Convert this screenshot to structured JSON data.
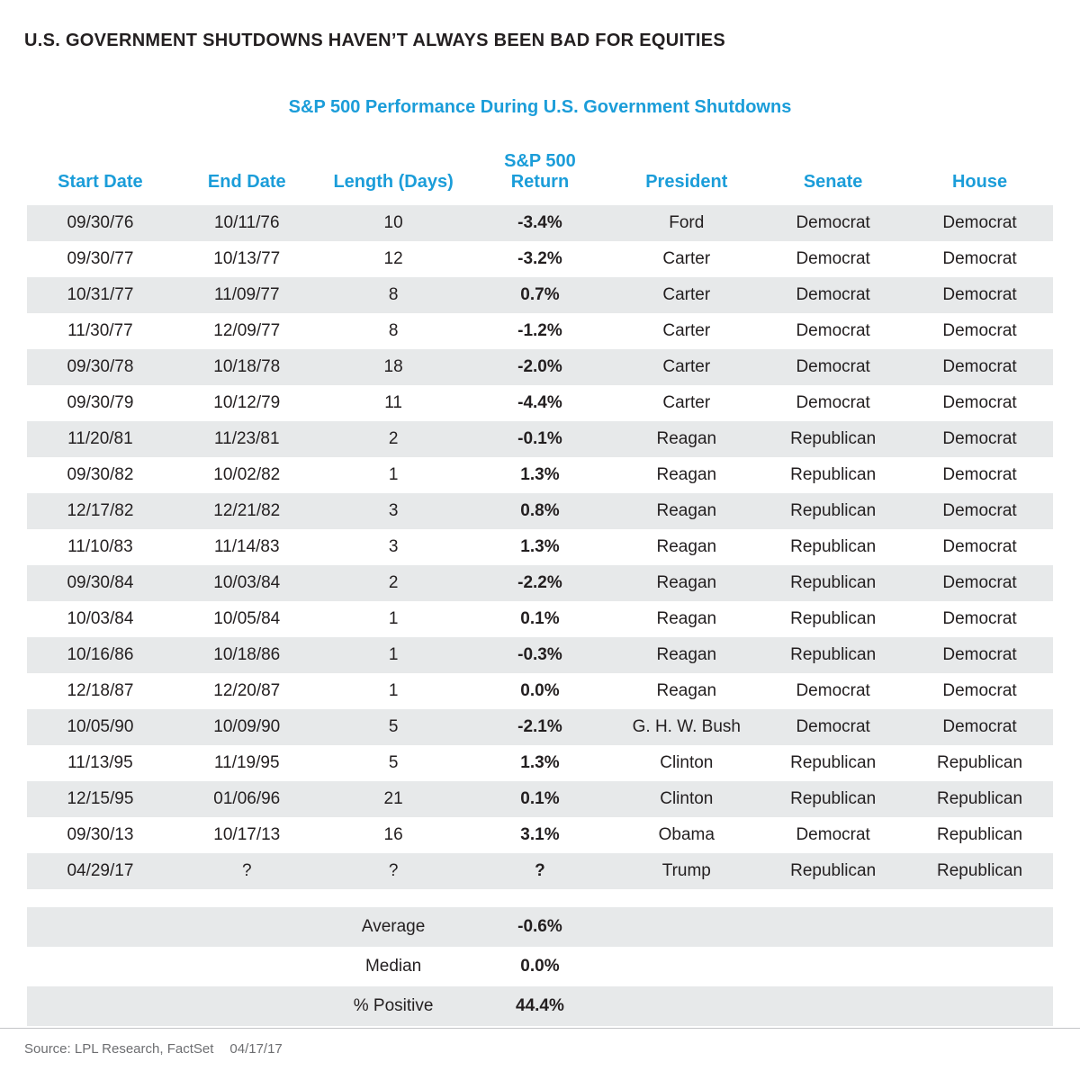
{
  "page_title": "U.S. GOVERNMENT SHUTDOWNS HAVEN’T ALWAYS BEEN BAD FOR EQUITIES",
  "source_label": "Source: LPL Research, FactSet",
  "source_date": "04/17/17",
  "colors": {
    "header_blue": "#1B9DD9",
    "negative_red": "#CE3353",
    "positive_green": "#7AB648",
    "neutral_black": "#231F20",
    "democrat_blue": "#235E8F",
    "republican_red": "#AC3B4E",
    "row_gray": "#E7E9EA"
  },
  "chart_data": {
    "type": "table",
    "title": "S&P 500 Performance During U.S. Government Shutdowns",
    "columns": [
      "Start Date",
      "End Date",
      "Length (Days)",
      "S&P 500\nReturn",
      "President",
      "Senate",
      "House"
    ],
    "rows": [
      {
        "start": "09/30/76",
        "end": "10/11/76",
        "length": "10",
        "return": "-3.4%",
        "return_tone": "negative",
        "president": "Ford",
        "president_party": "rep",
        "senate": "Democrat",
        "senate_party": "dem",
        "house": "Democrat",
        "house_party": "dem"
      },
      {
        "start": "09/30/77",
        "end": "10/13/77",
        "length": "12",
        "return": "-3.2%",
        "return_tone": "negative",
        "president": "Carter",
        "president_party": "dem",
        "senate": "Democrat",
        "senate_party": "dem",
        "house": "Democrat",
        "house_party": "dem"
      },
      {
        "start": "10/31/77",
        "end": "11/09/77",
        "length": "8",
        "return": "0.7%",
        "return_tone": "positive",
        "president": "Carter",
        "president_party": "dem",
        "senate": "Democrat",
        "senate_party": "dem",
        "house": "Democrat",
        "house_party": "dem"
      },
      {
        "start": "11/30/77",
        "end": "12/09/77",
        "length": "8",
        "return": "-1.2%",
        "return_tone": "negative",
        "president": "Carter",
        "president_party": "dem",
        "senate": "Democrat",
        "senate_party": "dem",
        "house": "Democrat",
        "house_party": "dem"
      },
      {
        "start": "09/30/78",
        "end": "10/18/78",
        "length": "18",
        "return": "-2.0%",
        "return_tone": "negative",
        "president": "Carter",
        "president_party": "dem",
        "senate": "Democrat",
        "senate_party": "dem",
        "house": "Democrat",
        "house_party": "dem"
      },
      {
        "start": "09/30/79",
        "end": "10/12/79",
        "length": "11",
        "return": "-4.4%",
        "return_tone": "negative",
        "president": "Carter",
        "president_party": "dem",
        "senate": "Democrat",
        "senate_party": "dem",
        "house": "Democrat",
        "house_party": "dem"
      },
      {
        "start": "11/20/81",
        "end": "11/23/81",
        "length": "2",
        "return": "-0.1%",
        "return_tone": "negative",
        "president": "Reagan",
        "president_party": "rep",
        "senate": "Republican",
        "senate_party": "rep",
        "house": "Democrat",
        "house_party": "dem"
      },
      {
        "start": "09/30/82",
        "end": "10/02/82",
        "length": "1",
        "return": "1.3%",
        "return_tone": "positive",
        "president": "Reagan",
        "president_party": "rep",
        "senate": "Republican",
        "senate_party": "rep",
        "house": "Democrat",
        "house_party": "dem"
      },
      {
        "start": "12/17/82",
        "end": "12/21/82",
        "length": "3",
        "return": "0.8%",
        "return_tone": "positive",
        "president": "Reagan",
        "president_party": "rep",
        "senate": "Republican",
        "senate_party": "rep",
        "house": "Democrat",
        "house_party": "dem"
      },
      {
        "start": "11/10/83",
        "end": "11/14/83",
        "length": "3",
        "return": "1.3%",
        "return_tone": "positive",
        "president": "Reagan",
        "president_party": "rep",
        "senate": "Republican",
        "senate_party": "rep",
        "house": "Democrat",
        "house_party": "dem"
      },
      {
        "start": "09/30/84",
        "end": "10/03/84",
        "length": "2",
        "return": "-2.2%",
        "return_tone": "negative",
        "president": "Reagan",
        "president_party": "rep",
        "senate": "Republican",
        "senate_party": "rep",
        "house": "Democrat",
        "house_party": "dem"
      },
      {
        "start": "10/03/84",
        "end": "10/05/84",
        "length": "1",
        "return": "0.1%",
        "return_tone": "positive",
        "president": "Reagan",
        "president_party": "rep",
        "senate": "Republican",
        "senate_party": "rep",
        "house": "Democrat",
        "house_party": "dem"
      },
      {
        "start": "10/16/86",
        "end": "10/18/86",
        "length": "1",
        "return": "-0.3%",
        "return_tone": "negative",
        "president": "Reagan",
        "president_party": "rep",
        "senate": "Republican",
        "senate_party": "rep",
        "house": "Democrat",
        "house_party": "dem"
      },
      {
        "start": "12/18/87",
        "end": "12/20/87",
        "length": "1",
        "return": "0.0%",
        "return_tone": "neutral",
        "president": "Reagan",
        "president_party": "rep",
        "senate": "Democrat",
        "senate_party": "dem",
        "house": "Democrat",
        "house_party": "dem"
      },
      {
        "start": "10/05/90",
        "end": "10/09/90",
        "length": "5",
        "return": "-2.1%",
        "return_tone": "negative",
        "president": "G. H. W. Bush",
        "president_party": "rep",
        "senate": "Democrat",
        "senate_party": "dem",
        "house": "Democrat",
        "house_party": "dem"
      },
      {
        "start": "11/13/95",
        "end": "11/19/95",
        "length": "5",
        "return": "1.3%",
        "return_tone": "positive",
        "president": "Clinton",
        "president_party": "dem",
        "senate": "Republican",
        "senate_party": "rep",
        "house": "Republican",
        "house_party": "rep"
      },
      {
        "start": "12/15/95",
        "end": "01/06/96",
        "length": "21",
        "return": "0.1%",
        "return_tone": "positive",
        "president": "Clinton",
        "president_party": "dem",
        "senate": "Republican",
        "senate_party": "rep",
        "house": "Republican",
        "house_party": "rep"
      },
      {
        "start": "09/30/13",
        "end": "10/17/13",
        "length": "16",
        "return": "3.1%",
        "return_tone": "positive",
        "president": "Obama",
        "president_party": "dem",
        "senate": "Democrat",
        "senate_party": "dem",
        "house": "Republican",
        "house_party": "rep"
      },
      {
        "start": "04/29/17",
        "end": "?",
        "length": "?",
        "return": "?",
        "return_tone": "neutral",
        "president": "Trump",
        "president_party": "rep",
        "senate": "Republican",
        "senate_party": "rep",
        "house": "Republican",
        "house_party": "rep"
      }
    ],
    "summary": [
      {
        "label": "Average",
        "value": "-0.6%",
        "tone": "negative"
      },
      {
        "label": "Median",
        "value": "0.0%",
        "tone": "neutral"
      },
      {
        "label": "% Positive",
        "value": "44.4%",
        "tone": "neutral"
      }
    ]
  }
}
